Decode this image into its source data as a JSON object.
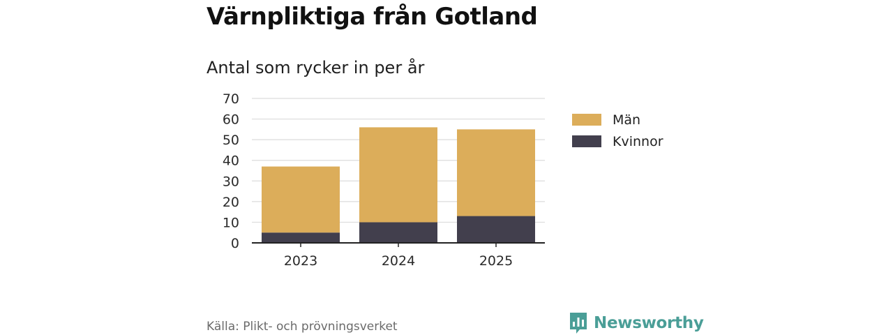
{
  "header": {
    "title": "Värnpliktiga från Gotland",
    "subtitle": "Antal som rycker in per år"
  },
  "footer": {
    "source": "Källa: Plikt- och prövningsverket",
    "brand": "Newsworthy",
    "brand_icon": "newsworthy-logo-icon",
    "brand_color": "#4a9e97"
  },
  "chart_data": {
    "type": "bar",
    "stacked": true,
    "title": "Värnpliktiga från Gotland",
    "subtitle": "Antal som rycker in per år",
    "categories": [
      "2023",
      "2024",
      "2025"
    ],
    "series": [
      {
        "name": "Kvinnor",
        "values": [
          5,
          10,
          13
        ],
        "color": "#423f4d"
      },
      {
        "name": "Män",
        "values": [
          32,
          46,
          42
        ],
        "color": "#dcad5a"
      }
    ],
    "legend_order": [
      "Män",
      "Kvinnor"
    ],
    "ylim": [
      0,
      70
    ],
    "yticks": [
      0,
      10,
      20,
      30,
      40,
      50,
      60,
      70
    ],
    "xlabel": "",
    "ylabel": "",
    "grid": true,
    "legend_position": "right"
  }
}
